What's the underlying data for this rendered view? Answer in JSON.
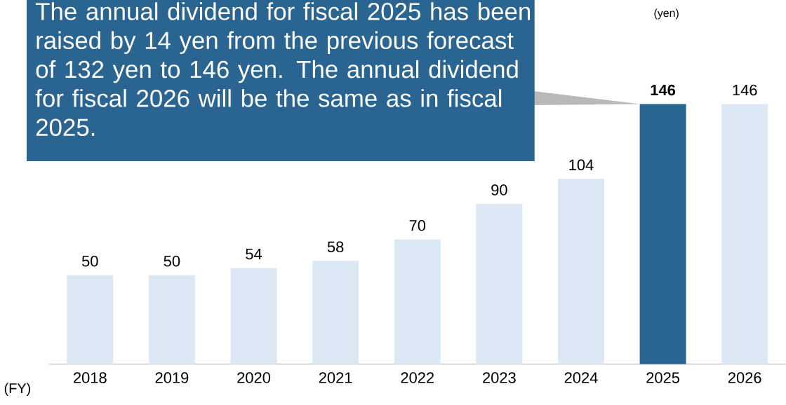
{
  "chart_data": {
    "type": "bar",
    "categories": [
      "2018",
      "2019",
      "2020",
      "2021",
      "2022",
      "2023",
      "2024",
      "2025",
      "2026"
    ],
    "values": [
      50,
      50,
      54,
      58,
      70,
      90,
      104,
      146,
      146
    ],
    "colors": [
      "#dce8f4",
      "#dce8f4",
      "#dce8f4",
      "#dce8f4",
      "#dce8f4",
      "#dce8f4",
      "#dce8f4",
      "#2a6491",
      "#dce8f4"
    ],
    "value_labels": [
      "50",
      "50",
      "54",
      "58",
      "70",
      "90",
      "104",
      "**146**",
      "146"
    ],
    "xlabel": "(FY)",
    "annotations": [
      "The annual dividend for fiscal 2025 has been raised by 14 yen from the previous forecast of 132 yen to 146 yen. The annual dividend for fiscal 2026 will be the same as in fiscal 2025.",
      "(yen)"
    ]
  }
}
